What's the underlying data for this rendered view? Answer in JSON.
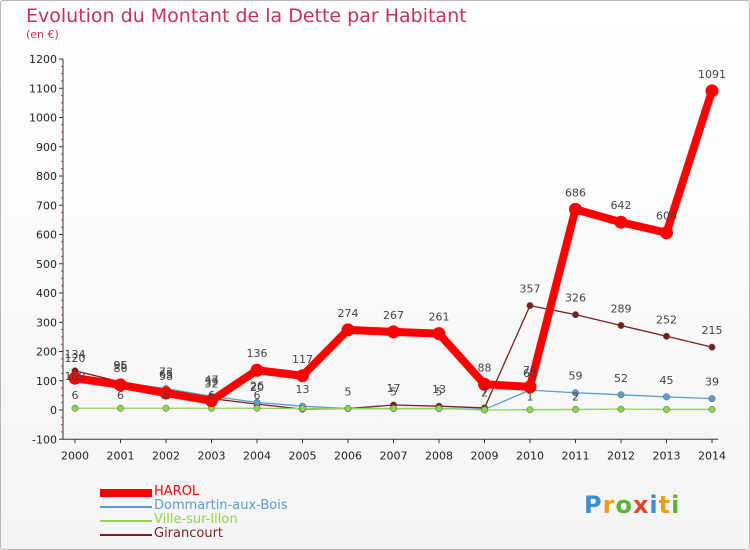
{
  "header": {
    "title": "Evolution du Montant de la Dette par Habitant",
    "subtitle": "(en €)"
  },
  "logo": {
    "text": "Proxiti"
  },
  "chart_data": {
    "type": "line",
    "title": "Evolution du Montant de la Dette par Habitant",
    "subtitle": "(en €)",
    "xlabel": "",
    "ylabel": "",
    "ylim": [
      -100,
      1200
    ],
    "yticks": [
      -100,
      0,
      100,
      200,
      300,
      400,
      500,
      600,
      700,
      800,
      900,
      1000,
      1100,
      1200
    ],
    "grid": false,
    "legend_position": "bottom-left",
    "x": [
      "2000",
      "2001",
      "2002",
      "2003",
      "2004",
      "2005",
      "2006",
      "2007",
      "2008",
      "2009",
      "2010",
      "2011",
      "2012",
      "2013",
      "2014"
    ],
    "series": [
      {
        "name": "HAROL",
        "color": "#ff0000",
        "values": [
          109,
          86,
          58,
          32,
          136,
          117,
          274,
          267,
          261,
          88,
          79,
          686,
          642,
          606,
          1091
        ],
        "labels": [
          "109",
          "86",
          "58",
          "32",
          "136",
          "117",
          "274",
          "267",
          "261",
          "88",
          "79",
          "686",
          "642",
          "606",
          "1091"
        ]
      },
      {
        "name": "Dommartin-aux-Bois",
        "color": "#5b9bd5",
        "values": [
          120,
          95,
          73,
          47,
          26,
          13,
          5,
          5,
          5,
          2,
          68,
          59,
          52,
          45,
          39
        ],
        "labels": [
          "120",
          "95",
          "73",
          "47",
          "26",
          "13",
          "5",
          "5",
          "5",
          "2",
          "68",
          "59",
          "52",
          "45",
          "39"
        ]
      },
      {
        "name": "Ville-sur-Illon",
        "color": "#8fd44e",
        "values": [
          6,
          6,
          6,
          6,
          6,
          5,
          5,
          5,
          5,
          0,
          1,
          2,
          3,
          2,
          2
        ],
        "labels": [
          "6",
          "6",
          "6",
          "6",
          "6",
          "",
          "",
          "",
          "",
          "",
          "1",
          "2",
          "",
          "",
          ""
        ]
      },
      {
        "name": "Girancourt",
        "color": "#7b1e1e",
        "values": [
          134,
          96,
          65,
          39,
          20,
          3,
          5,
          17,
          13,
          7,
          357,
          326,
          289,
          252,
          215
        ],
        "labels": [
          "134",
          "96",
          "65",
          "39",
          "20",
          "",
          "",
          "17",
          "13",
          "7",
          "357",
          "326",
          "289",
          "252",
          "215"
        ]
      }
    ]
  }
}
